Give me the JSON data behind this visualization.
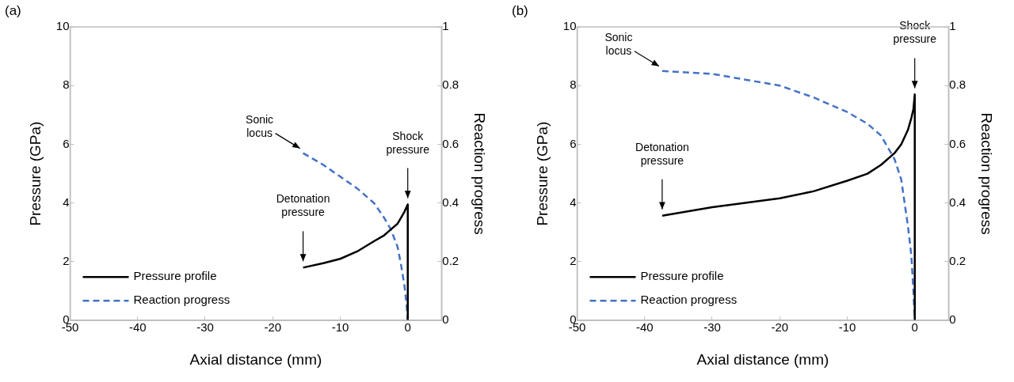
{
  "chart_data": [
    {
      "type": "line",
      "title": "(a)",
      "xlabel": "Axial distance (mm)",
      "ylabel": "Pressure (GPa)",
      "y2label": "Reaction progress",
      "xlim": [
        -50,
        5
      ],
      "xticks": [
        -50,
        -40,
        -30,
        -20,
        -10,
        0
      ],
      "ylim": [
        0,
        10
      ],
      "yticks": [
        0,
        2,
        4,
        6,
        8,
        10
      ],
      "y2lim": [
        0,
        1
      ],
      "y2ticks": [
        0,
        0.2,
        0.4,
        0.6,
        0.8,
        1
      ],
      "grid": false,
      "legend": "bottom left",
      "marker": "none",
      "series": [
        {
          "name": "Pressure profile",
          "color": "#000000",
          "line_style": "solid",
          "x": [
            -15.5,
            -12.5,
            -10,
            -7.5,
            -5,
            -3.5,
            -2.5,
            -1.5,
            -1,
            -0.5,
            0,
            0
          ],
          "values": [
            1.8,
            1.95,
            2.1,
            2.35,
            2.7,
            2.9,
            3.1,
            3.3,
            3.5,
            3.7,
            3.95,
            0
          ]
        },
        {
          "name": "Reaction progress",
          "color": "#4472c4",
          "line_style": "dashed",
          "axis": "y2",
          "x": [
            -15.5,
            -12.5,
            -10,
            -7.5,
            -5,
            -3.5,
            -2.5,
            -1.5,
            -1,
            -0.5,
            -0.2,
            0
          ],
          "values": [
            0.57,
            0.53,
            0.49,
            0.45,
            0.4,
            0.35,
            0.31,
            0.25,
            0.19,
            0.12,
            0.06,
            0
          ]
        }
      ],
      "annotations": [
        {
          "text": "Sonic locus",
          "x": -15.5,
          "y": 5.7
        },
        {
          "text": "Detonation pressure",
          "x": -15.5,
          "y": 1.8
        },
        {
          "text": "Shock pressure",
          "x": 0,
          "y": 3.95
        }
      ]
    },
    {
      "type": "line",
      "title": "(b)",
      "xlabel": "Axial distance (mm)",
      "ylabel": "Pressure (GPa)",
      "y2label": "Reaction progress",
      "xlim": [
        -50,
        5
      ],
      "xticks": [
        -50,
        -40,
        -30,
        -20,
        -10,
        0
      ],
      "ylim": [
        0,
        10
      ],
      "yticks": [
        0,
        2,
        4,
        6,
        8,
        10
      ],
      "y2lim": [
        0,
        1
      ],
      "y2ticks": [
        0,
        0.2,
        0.4,
        0.6,
        0.8,
        1
      ],
      "grid": false,
      "legend": "bottom left",
      "marker": "none",
      "series": [
        {
          "name": "Pressure profile",
          "color": "#000000",
          "line_style": "solid",
          "x": [
            -37.4,
            -30,
            -20,
            -15,
            -10,
            -7,
            -5,
            -3,
            -2,
            -1,
            -0.5,
            -0.2,
            0,
            0
          ],
          "values": [
            3.57,
            3.86,
            4.16,
            4.4,
            4.76,
            5.0,
            5.3,
            5.7,
            6.0,
            6.5,
            6.9,
            7.2,
            7.7,
            0
          ]
        },
        {
          "name": "Reaction progress",
          "color": "#4472c4",
          "line_style": "dashed",
          "axis": "y2",
          "x": [
            -37.4,
            -30,
            -20,
            -15,
            -10,
            -7,
            -5,
            -3,
            -2,
            -1,
            -0.5,
            -0.2,
            0
          ],
          "values": [
            0.85,
            0.84,
            0.8,
            0.76,
            0.71,
            0.67,
            0.63,
            0.55,
            0.48,
            0.32,
            0.22,
            0.1,
            0
          ]
        }
      ],
      "annotations": [
        {
          "text": "Sonic locus",
          "x": -37.4,
          "y": 8.5
        },
        {
          "text": "Detonation pressure",
          "x": -37.4,
          "y": 3.57
        },
        {
          "text": "Shock pressure",
          "x": 0,
          "y": 7.7
        }
      ]
    }
  ]
}
